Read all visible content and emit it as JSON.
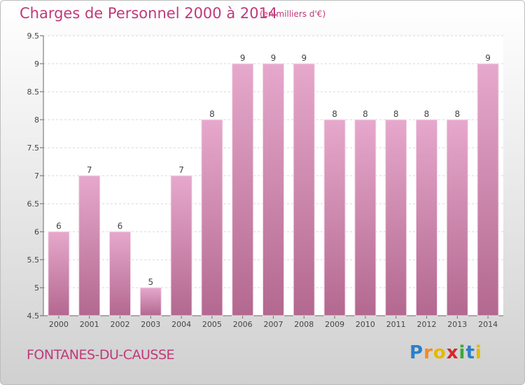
{
  "chart_data": {
    "type": "bar",
    "title": "Charges de Personnel 2000 à 2014",
    "subtitle": "(en milliers d'€)",
    "categories": [
      "2000",
      "2001",
      "2002",
      "2003",
      "2004",
      "2005",
      "2006",
      "2007",
      "2008",
      "2009",
      "2010",
      "2011",
      "2012",
      "2013",
      "2014"
    ],
    "values": [
      6,
      7,
      6,
      5,
      7,
      8,
      9,
      9,
      9,
      8,
      8,
      8,
      8,
      8,
      9
    ],
    "ylim": [
      4.5,
      9.5
    ],
    "yticks": [
      "4.5",
      "5",
      "5.5",
      "6",
      "6.5",
      "7",
      "7.5",
      "8",
      "8.5",
      "9",
      "9.5"
    ],
    "grid": true,
    "bar_color": "#d4889f"
  },
  "footer": {
    "commune": "FONTANES-DU-CAUSSE",
    "logo": {
      "letters": [
        "P",
        "r",
        "o",
        "x",
        "i",
        "t",
        "i"
      ],
      "colors": [
        "#2a7fc9",
        "#f28c1e",
        "#e6b800",
        "#d6262d",
        "#3aa83a",
        "#2a7fc9",
        "#e6b800"
      ]
    }
  }
}
